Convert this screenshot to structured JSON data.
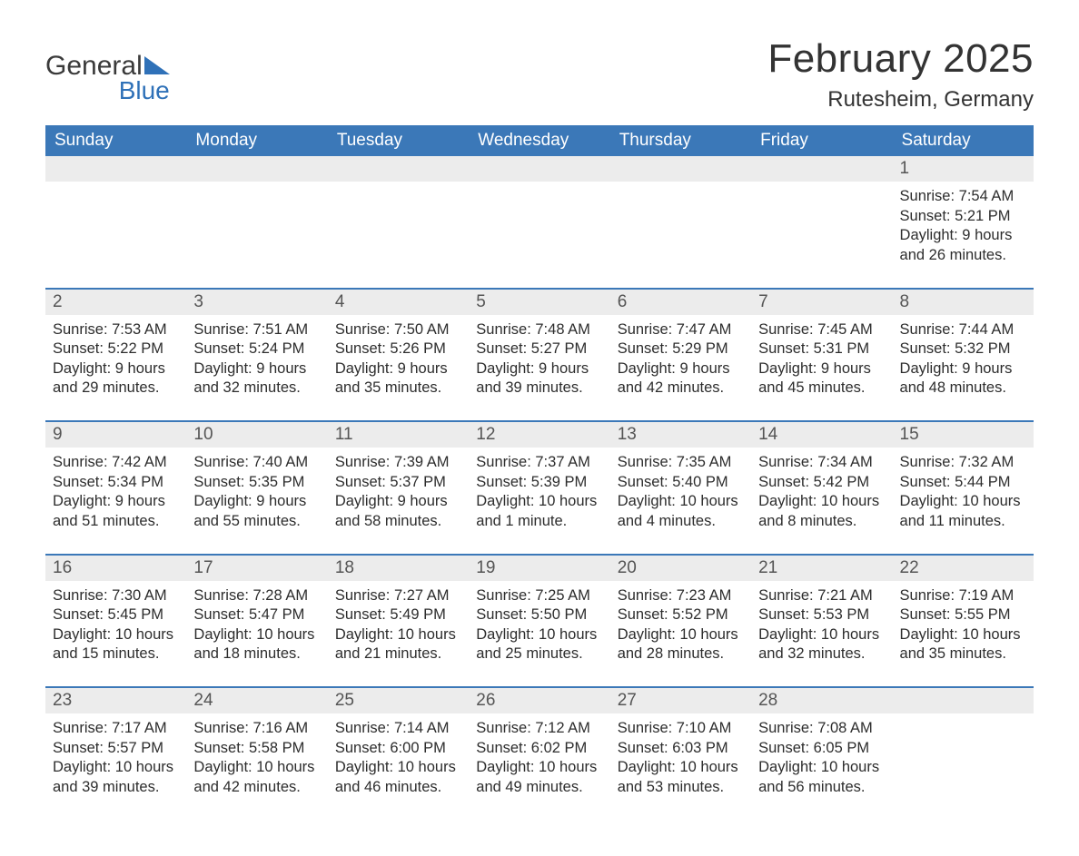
{
  "logo": {
    "word1": "General",
    "word2": "Blue",
    "tri_color": "#2f71b8"
  },
  "title": "February 2025",
  "location": "Rutesheim, Germany",
  "colors": {
    "header_bg": "#3b78b8",
    "header_text": "#ffffff",
    "rule": "#3b78b8",
    "daynum_bg": "#ececec",
    "body_text": "#2d2d2d",
    "page_bg": "#ffffff"
  },
  "weekdays": [
    "Sunday",
    "Monday",
    "Tuesday",
    "Wednesday",
    "Thursday",
    "Friday",
    "Saturday"
  ],
  "weeks": [
    [
      null,
      null,
      null,
      null,
      null,
      null,
      {
        "n": "1",
        "sunrise": "Sunrise: 7:54 AM",
        "sunset": "Sunset: 5:21 PM",
        "day1": "Daylight: 9 hours",
        "day2": "and 26 minutes."
      }
    ],
    [
      {
        "n": "2",
        "sunrise": "Sunrise: 7:53 AM",
        "sunset": "Sunset: 5:22 PM",
        "day1": "Daylight: 9 hours",
        "day2": "and 29 minutes."
      },
      {
        "n": "3",
        "sunrise": "Sunrise: 7:51 AM",
        "sunset": "Sunset: 5:24 PM",
        "day1": "Daylight: 9 hours",
        "day2": "and 32 minutes."
      },
      {
        "n": "4",
        "sunrise": "Sunrise: 7:50 AM",
        "sunset": "Sunset: 5:26 PM",
        "day1": "Daylight: 9 hours",
        "day2": "and 35 minutes."
      },
      {
        "n": "5",
        "sunrise": "Sunrise: 7:48 AM",
        "sunset": "Sunset: 5:27 PM",
        "day1": "Daylight: 9 hours",
        "day2": "and 39 minutes."
      },
      {
        "n": "6",
        "sunrise": "Sunrise: 7:47 AM",
        "sunset": "Sunset: 5:29 PM",
        "day1": "Daylight: 9 hours",
        "day2": "and 42 minutes."
      },
      {
        "n": "7",
        "sunrise": "Sunrise: 7:45 AM",
        "sunset": "Sunset: 5:31 PM",
        "day1": "Daylight: 9 hours",
        "day2": "and 45 minutes."
      },
      {
        "n": "8",
        "sunrise": "Sunrise: 7:44 AM",
        "sunset": "Sunset: 5:32 PM",
        "day1": "Daylight: 9 hours",
        "day2": "and 48 minutes."
      }
    ],
    [
      {
        "n": "9",
        "sunrise": "Sunrise: 7:42 AM",
        "sunset": "Sunset: 5:34 PM",
        "day1": "Daylight: 9 hours",
        "day2": "and 51 minutes."
      },
      {
        "n": "10",
        "sunrise": "Sunrise: 7:40 AM",
        "sunset": "Sunset: 5:35 PM",
        "day1": "Daylight: 9 hours",
        "day2": "and 55 minutes."
      },
      {
        "n": "11",
        "sunrise": "Sunrise: 7:39 AM",
        "sunset": "Sunset: 5:37 PM",
        "day1": "Daylight: 9 hours",
        "day2": "and 58 minutes."
      },
      {
        "n": "12",
        "sunrise": "Sunrise: 7:37 AM",
        "sunset": "Sunset: 5:39 PM",
        "day1": "Daylight: 10 hours",
        "day2": "and 1 minute."
      },
      {
        "n": "13",
        "sunrise": "Sunrise: 7:35 AM",
        "sunset": "Sunset: 5:40 PM",
        "day1": "Daylight: 10 hours",
        "day2": "and 4 minutes."
      },
      {
        "n": "14",
        "sunrise": "Sunrise: 7:34 AM",
        "sunset": "Sunset: 5:42 PM",
        "day1": "Daylight: 10 hours",
        "day2": "and 8 minutes."
      },
      {
        "n": "15",
        "sunrise": "Sunrise: 7:32 AM",
        "sunset": "Sunset: 5:44 PM",
        "day1": "Daylight: 10 hours",
        "day2": "and 11 minutes."
      }
    ],
    [
      {
        "n": "16",
        "sunrise": "Sunrise: 7:30 AM",
        "sunset": "Sunset: 5:45 PM",
        "day1": "Daylight: 10 hours",
        "day2": "and 15 minutes."
      },
      {
        "n": "17",
        "sunrise": "Sunrise: 7:28 AM",
        "sunset": "Sunset: 5:47 PM",
        "day1": "Daylight: 10 hours",
        "day2": "and 18 minutes."
      },
      {
        "n": "18",
        "sunrise": "Sunrise: 7:27 AM",
        "sunset": "Sunset: 5:49 PM",
        "day1": "Daylight: 10 hours",
        "day2": "and 21 minutes."
      },
      {
        "n": "19",
        "sunrise": "Sunrise: 7:25 AM",
        "sunset": "Sunset: 5:50 PM",
        "day1": "Daylight: 10 hours",
        "day2": "and 25 minutes."
      },
      {
        "n": "20",
        "sunrise": "Sunrise: 7:23 AM",
        "sunset": "Sunset: 5:52 PM",
        "day1": "Daylight: 10 hours",
        "day2": "and 28 minutes."
      },
      {
        "n": "21",
        "sunrise": "Sunrise: 7:21 AM",
        "sunset": "Sunset: 5:53 PM",
        "day1": "Daylight: 10 hours",
        "day2": "and 32 minutes."
      },
      {
        "n": "22",
        "sunrise": "Sunrise: 7:19 AM",
        "sunset": "Sunset: 5:55 PM",
        "day1": "Daylight: 10 hours",
        "day2": "and 35 minutes."
      }
    ],
    [
      {
        "n": "23",
        "sunrise": "Sunrise: 7:17 AM",
        "sunset": "Sunset: 5:57 PM",
        "day1": "Daylight: 10 hours",
        "day2": "and 39 minutes."
      },
      {
        "n": "24",
        "sunrise": "Sunrise: 7:16 AM",
        "sunset": "Sunset: 5:58 PM",
        "day1": "Daylight: 10 hours",
        "day2": "and 42 minutes."
      },
      {
        "n": "25",
        "sunrise": "Sunrise: 7:14 AM",
        "sunset": "Sunset: 6:00 PM",
        "day1": "Daylight: 10 hours",
        "day2": "and 46 minutes."
      },
      {
        "n": "26",
        "sunrise": "Sunrise: 7:12 AM",
        "sunset": "Sunset: 6:02 PM",
        "day1": "Daylight: 10 hours",
        "day2": "and 49 minutes."
      },
      {
        "n": "27",
        "sunrise": "Sunrise: 7:10 AM",
        "sunset": "Sunset: 6:03 PM",
        "day1": "Daylight: 10 hours",
        "day2": "and 53 minutes."
      },
      {
        "n": "28",
        "sunrise": "Sunrise: 7:08 AM",
        "sunset": "Sunset: 6:05 PM",
        "day1": "Daylight: 10 hours",
        "day2": "and 56 minutes."
      },
      null
    ]
  ]
}
